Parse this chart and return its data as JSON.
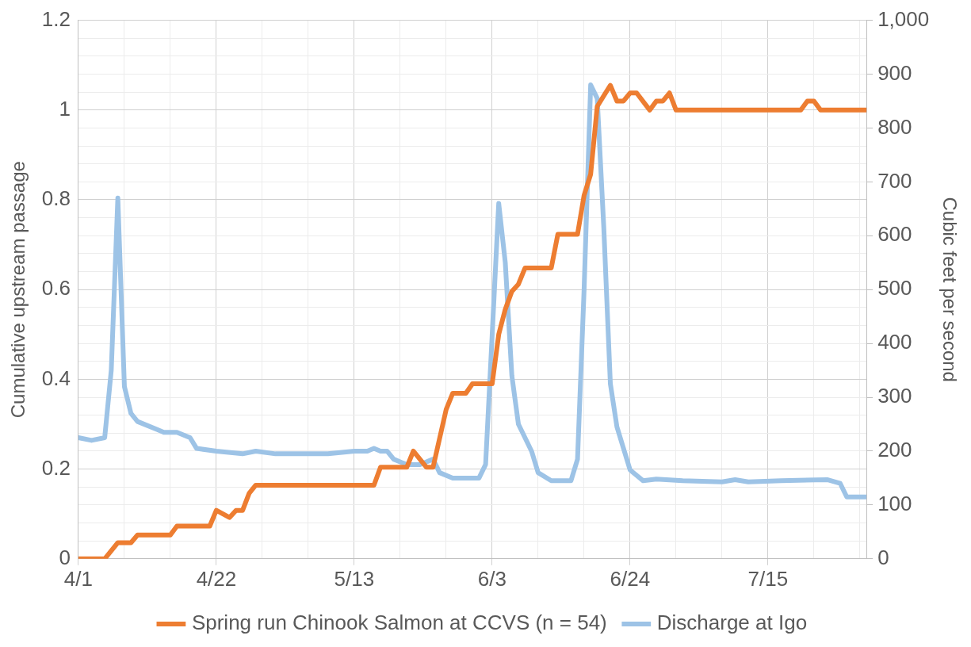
{
  "chart_data": {
    "type": "line",
    "xlabel": null,
    "ylabel": "Cumulative upstream passage",
    "y2label": "Cubic feet per second",
    "xlim": [
      "--04-01",
      "--07-30"
    ],
    "xticks": [
      {
        "value": "--04-01",
        "label": "4/1"
      },
      {
        "value": "--04-08",
        "label": null
      },
      {
        "value": "--04-15",
        "label": null
      },
      {
        "value": "--04-22",
        "label": "4/22"
      },
      {
        "value": "--04-29",
        "label": null
      },
      {
        "value": "--05-06",
        "label": null
      },
      {
        "value": "--05-13",
        "label": "5/13"
      },
      {
        "value": "--05-20",
        "label": null
      },
      {
        "value": "--05-27",
        "label": null
      },
      {
        "value": "--06-03",
        "label": "6/3"
      },
      {
        "value": "--06-10",
        "label": null
      },
      {
        "value": "--06-17",
        "label": null
      },
      {
        "value": "--06-24",
        "label": "6/24"
      },
      {
        "value": "--07-01",
        "label": null
      },
      {
        "value": "--07-08",
        "label": null
      },
      {
        "value": "--07-15",
        "label": "7/15"
      },
      {
        "value": "--07-22",
        "label": null
      },
      {
        "value": "--07-29",
        "label": null
      }
    ],
    "ylim": [
      0,
      1.2
    ],
    "yticks": [
      0,
      {
        "value": 0.04,
        "label": null
      },
      {
        "value": 0.08,
        "label": null
      },
      {
        "value": 0.12,
        "label": null
      },
      {
        "value": 0.16,
        "label": null
      },
      0.2,
      {
        "value": 0.24,
        "label": null
      },
      {
        "value": 0.28,
        "label": null
      },
      {
        "value": 0.32,
        "label": null
      },
      {
        "value": 0.36,
        "label": null
      },
      0.4,
      {
        "value": 0.44,
        "label": null
      },
      {
        "value": 0.48,
        "label": null
      },
      {
        "value": 0.52,
        "label": null
      },
      {
        "value": 0.56,
        "label": null
      },
      0.6,
      {
        "value": 0.64,
        "label": null
      },
      {
        "value": 0.68,
        "label": null
      },
      {
        "value": 0.72,
        "label": null
      },
      {
        "value": 0.76,
        "label": null
      },
      0.8,
      {
        "value": 0.84,
        "label": null
      },
      {
        "value": 0.88,
        "label": null
      },
      {
        "value": 0.92,
        "label": null
      },
      {
        "value": 0.96,
        "label": null
      },
      1,
      {
        "value": 1.04,
        "label": null
      },
      {
        "value": 1.08,
        "label": null
      },
      {
        "value": 1.12,
        "label": null
      },
      {
        "value": 1.16,
        "label": null
      },
      1.2
    ],
    "y2lim": [
      0,
      1000
    ],
    "y2ticks": [
      0,
      100,
      200,
      300,
      400,
      500,
      600,
      700,
      800,
      900,
      {
        "value": 1000,
        "label": "1,000"
      }
    ],
    "grid": true,
    "legend": "bottom",
    "marker": "none",
    "series": [
      {
        "name": "Spring run Chinook Salmon at CCVS (n = 54)",
        "color": "#ed7d31",
        "x": [
          "--04-01",
          "--04-05",
          "--04-07",
          "--04-09",
          "--04-10",
          "--04-15",
          "--04-16",
          "--04-21",
          "--04-22",
          "--04-24",
          "--04-25",
          "--04-26",
          "--04-27",
          "--04-28",
          "--05-16",
          "--05-17",
          "--05-21",
          "--05-22",
          "--05-24",
          "--05-25",
          "--05-27",
          "--05-28",
          "--05-30",
          "--05-31",
          "--06-03",
          "--06-04",
          "--06-05",
          "--06-06",
          "--06-07",
          "--06-08",
          "--06-12",
          "--06-13",
          "--06-16",
          "--06-17",
          "--06-18",
          "--06-19",
          "--06-20",
          "--06-21",
          "--06-22",
          "--06-23",
          "--06-24",
          "--06-25",
          "--06-27",
          "--06-28",
          "--06-29",
          "--06-30",
          "--07-01",
          "--07-20",
          "--07-21",
          "--07-22",
          "--07-23",
          "--07-30"
        ],
        "values": [
          0,
          0,
          0.036,
          0.036,
          0.053,
          0.053,
          0.073,
          0.073,
          0.108,
          0.092,
          0.108,
          0.108,
          0.146,
          0.164,
          0.164,
          0.204,
          0.204,
          0.24,
          0.204,
          0.204,
          0.333,
          0.369,
          0.369,
          0.39,
          0.39,
          0.5,
          0.556,
          0.596,
          0.612,
          0.648,
          0.648,
          0.723,
          0.723,
          0.81,
          0.857,
          1.008,
          1.032,
          1.055,
          1.02,
          1.02,
          1.038,
          1.038,
          1,
          1.02,
          1.02,
          1.038,
          1,
          1,
          1.02,
          1.02,
          1,
          1
        ]
      },
      {
        "name": "Discharge at Igo",
        "color": "#9dc3e6",
        "axis": "y2",
        "x": [
          "--04-01",
          "--04-03",
          "--04-05",
          "--04-06",
          "--04-07",
          "--04-08",
          "--04-09",
          "--04-10",
          "--04-13",
          "--04-14",
          "--04-16",
          "--04-18",
          "--04-19",
          "--04-22",
          "--04-26",
          "--04-28",
          "--05-01",
          "--05-06",
          "--05-09",
          "--05-13",
          "--05-15",
          "--05-16",
          "--05-17",
          "--05-18",
          "--05-19",
          "--05-21",
          "--05-23",
          "--05-25",
          "--05-26",
          "--05-28",
          "--06-01",
          "--06-02",
          "--06-03",
          "--06-04",
          "--06-05",
          "--06-06",
          "--06-07",
          "--06-09",
          "--06-10",
          "--06-12",
          "--06-15",
          "--06-16",
          "--06-17",
          "--06-18",
          "--06-19",
          "--06-20",
          "--06-21",
          "--06-22",
          "--06-24",
          "--06-26",
          "--06-28",
          "--07-02",
          "--07-08",
          "--07-10",
          "--07-12",
          "--07-17",
          "--07-24",
          "--07-26",
          "--07-27",
          "--07-30"
        ],
        "values": [
          225,
          220,
          225,
          350,
          670,
          320,
          270,
          255,
          240,
          235,
          235,
          225,
          205,
          200,
          195,
          200,
          195,
          195,
          195,
          200,
          200,
          205,
          200,
          200,
          185,
          175,
          175,
          185,
          160,
          150,
          150,
          175,
          415,
          660,
          550,
          340,
          250,
          200,
          160,
          145,
          145,
          185,
          500,
          880,
          855,
          615,
          325,
          245,
          165,
          145,
          148,
          145,
          143,
          147,
          143,
          145,
          147,
          140,
          115,
          115
        ]
      }
    ]
  }
}
